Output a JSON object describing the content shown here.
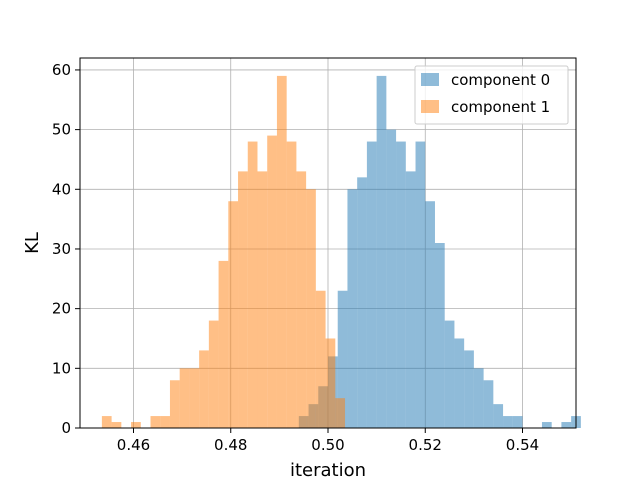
{
  "chart_data": {
    "type": "bar",
    "xlabel": "iteration",
    "ylabel": "KL",
    "xlim": [
      0.449,
      0.551
    ],
    "ylim": [
      0,
      62
    ],
    "x_ticks": [
      0.46,
      0.48,
      0.5,
      0.52,
      0.54
    ],
    "x_tick_labels": [
      "0.46",
      "0.48",
      "0.50",
      "0.52",
      "0.54"
    ],
    "y_ticks": [
      0,
      10,
      20,
      30,
      40,
      50,
      60
    ],
    "y_tick_labels": [
      "0",
      "10",
      "20",
      "30",
      "40",
      "50",
      "60"
    ],
    "grid": true,
    "legend_position": "top-right",
    "series": [
      {
        "name": "component 0",
        "color": "#1f77b4",
        "opacity": 0.5,
        "bin_start": 0.494,
        "bin_width": 0.002,
        "counts": [
          2,
          4,
          7,
          12,
          23,
          40,
          42,
          48,
          59,
          50,
          48,
          43,
          48,
          38,
          31,
          18,
          15,
          13,
          10,
          8,
          4,
          2,
          2,
          0,
          0,
          1,
          0,
          1,
          2
        ]
      },
      {
        "name": "component 1",
        "color": "#ff7f0e",
        "opacity": 0.5,
        "bin_start": 0.4535,
        "bin_width": 0.002,
        "counts": [
          2,
          1,
          0,
          1,
          0,
          2,
          2,
          8,
          10,
          10,
          13,
          18,
          28,
          38,
          43,
          48,
          43,
          49,
          59,
          48,
          43,
          40,
          23,
          15,
          5,
          0
        ]
      }
    ]
  }
}
